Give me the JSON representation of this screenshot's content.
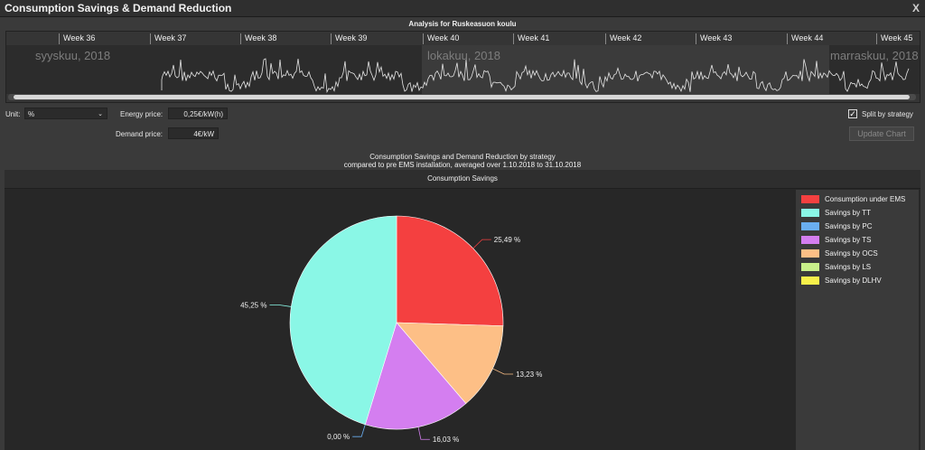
{
  "window": {
    "title": "Consumption Savings & Demand Reduction",
    "close": "X"
  },
  "analysis": {
    "title": "Analysis for Ruskeasuon koulu",
    "weeks": [
      "Week 36",
      "Week 37",
      "Week 38",
      "Week 39",
      "Week 40",
      "Week 41",
      "Week 42",
      "Week 43",
      "Week 44",
      "Week 45"
    ],
    "months": [
      "syyskuu, 2018",
      "lokakuu, 2018",
      "marraskuu, 2018"
    ]
  },
  "controls": {
    "unit_label": "Unit:",
    "unit_value": "%",
    "energy_price_label": "Energy price:",
    "energy_price_value": "0,25€/kW(h)",
    "demand_price_label": "Demand price:",
    "demand_price_value": "4€/kW",
    "split_label": "Split by strategy",
    "update_label": "Update Chart"
  },
  "chart_title_line1": "Consumption Savings and Demand Reduction by strategy",
  "chart_title_line2": "compared to pre EMS installation, averaged over 1.10.2018 to 31.10.2018",
  "colors": {
    "consumption_under_ems": "#f44040",
    "tt": "#8af7e6",
    "pc": "#6aaef0",
    "ts": "#d47ef0",
    "ocs": "#fdbf86",
    "ls": "#c9f08a",
    "dlhv": "#f7f04a"
  },
  "chart_data": {
    "type": "pie",
    "title": "Consumption Savings",
    "slices": [
      {
        "name": "Consumption under EMS",
        "value": 25.49,
        "label": "25,49 %",
        "color": "#f44040"
      },
      {
        "name": "Savings by OCS",
        "value": 13.23,
        "label": "13,23 %",
        "color": "#fdbf86"
      },
      {
        "name": "Savings by TS",
        "value": 16.03,
        "label": "16,03 %",
        "color": "#d47ef0"
      },
      {
        "name": "Savings by PC",
        "value": 0.0,
        "label": "0,00 %",
        "color": "#6aaef0"
      },
      {
        "name": "Savings by TT",
        "value": 45.25,
        "label": "45,25 %",
        "color": "#8af7e6"
      }
    ],
    "legend": [
      {
        "name": "Consumption under EMS",
        "color": "#f44040"
      },
      {
        "name": "Savings by TT",
        "color": "#8af7e6"
      },
      {
        "name": "Savings by PC",
        "color": "#6aaef0"
      },
      {
        "name": "Savings by TS",
        "color": "#d47ef0"
      },
      {
        "name": "Savings by OCS",
        "color": "#fdbf86"
      },
      {
        "name": "Savings by LS",
        "color": "#c9f08a"
      },
      {
        "name": "Savings by DLHV",
        "color": "#f7f04a"
      }
    ],
    "legend_position": "right"
  }
}
